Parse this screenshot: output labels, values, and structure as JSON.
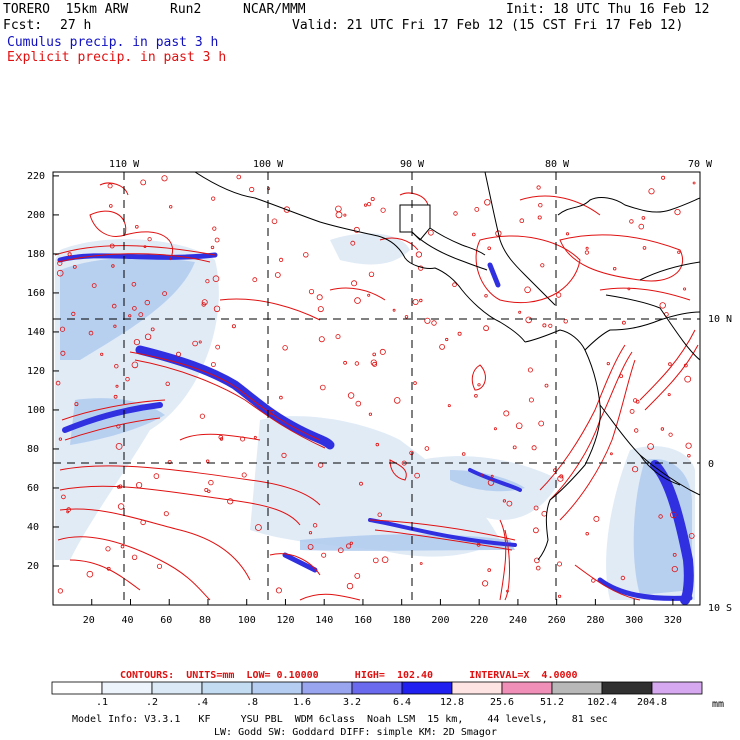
{
  "header": {
    "model": "TORERO  15km ARW",
    "run": "Run2",
    "org": "NCAR/MMM",
    "init": "Init: 18 UTC Thu 16 Feb 12",
    "fcst_label": "Fcst:",
    "fcst_value": "27 h",
    "valid": "Valid: 21 UTC Fri 17 Feb 12 (15 CST Fri 17 Feb 12)",
    "line1": "Cumulus precip. in past 3 h",
    "line2": "Explicit precip. in past 3 h"
  },
  "map": {
    "top_lon_labels": [
      "110 W",
      "100 W",
      "90 W",
      "80 W",
      "70 W"
    ],
    "right_lat_labels": [
      "10 N",
      "0",
      "10 S"
    ],
    "y_tick_labels": [
      "20",
      "40",
      "60",
      "80",
      "100",
      "120",
      "140",
      "160",
      "180",
      "200",
      "220"
    ],
    "x_tick_labels": [
      "20",
      "40",
      "60",
      "80",
      "100",
      "120",
      "140",
      "160",
      "180",
      "200",
      "220",
      "240",
      "260",
      "280",
      "300",
      "320"
    ],
    "colors": {
      "coast": "#000000",
      "cumulus": "#3030e0",
      "explicit": "#e01010",
      "grid": "#000000"
    }
  },
  "contour_info": {
    "text": "CONTOURS:  UNITS=mm  LOW= 0.10000      HIGH=  102.40      INTERVAL=X  4.0000"
  },
  "colorbar": {
    "labels": [
      ".1",
      ".2",
      ".4",
      ".8",
      "1.6",
      "3.2",
      "6.4",
      "12.8",
      "25.6",
      "51.2",
      "102.4",
      "204.8"
    ],
    "unit": "mm",
    "colors": [
      "#ffffff",
      "#eef4fb",
      "#dbe8f5",
      "#c4dcf2",
      "#b4cdf0",
      "#9aa5f0",
      "#6a6aee",
      "#2020f0",
      "#ffe4e4",
      "#f090b8",
      "#b8b8b8",
      "#303030",
      "#d6a8f0"
    ]
  },
  "footer": {
    "line1": "Model Info: V3.3.1   KF     YSU PBL  WDM 6class  Noah LSM  15 km,    44 levels,    81 sec",
    "line2": "LW: Godd SW: Goddard DIFF: simple KM: 2D Smagor"
  }
}
